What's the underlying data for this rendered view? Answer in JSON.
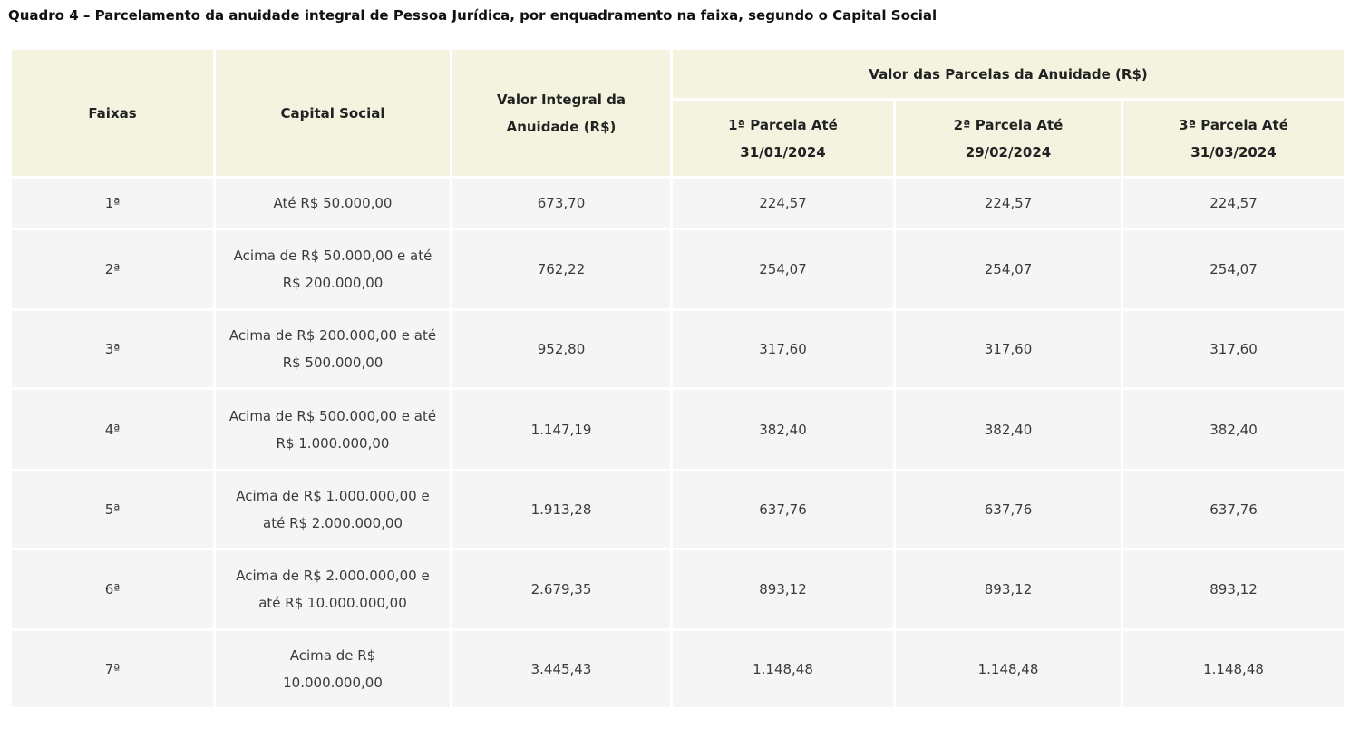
{
  "caption": "Quadro 4 – Parcelamento da anuidade integral de Pessoa Jurídica, por enquadramento na faixa, segundo o Capital Social",
  "headers": {
    "faixas": "Faixas",
    "capital_social": "Capital Social",
    "valor_integral": "Valor Integral da Anuidade (R$)",
    "parcelas_group": "Valor das Parcelas da Anuidade (R$)",
    "parcela_1": "1ª Parcela Até 31/01/2024",
    "parcela_2": "2ª Parcela Até 29/02/2024",
    "parcela_3": "3ª Parcela Até 31/03/2024"
  },
  "rows": [
    {
      "faixa": "1ª",
      "capital": "Até R$ 50.000,00",
      "integral": "673,70",
      "p1": "224,57",
      "p2": "224,57",
      "p3": "224,57"
    },
    {
      "faixa": "2ª",
      "capital": "Acima de R$ 50.000,00 e até R$ 200.000,00",
      "integral": "762,22",
      "p1": "254,07",
      "p2": "254,07",
      "p3": "254,07"
    },
    {
      "faixa": "3ª",
      "capital": "Acima de R$ 200.000,00 e até R$ 500.000,00",
      "integral": "952,80",
      "p1": "317,60",
      "p2": "317,60",
      "p3": "317,60"
    },
    {
      "faixa": "4ª",
      "capital": "Acima de R$ 500.000,00 e até R$ 1.000.000,00",
      "integral": "1.147,19",
      "p1": "382,40",
      "p2": "382,40",
      "p3": "382,40"
    },
    {
      "faixa": "5ª",
      "capital": "Acima de R$ 1.000.000,00 e até R$ 2.000.000,00",
      "integral": "1.913,28",
      "p1": "637,76",
      "p2": "637,76",
      "p3": "637,76"
    },
    {
      "faixa": "6ª",
      "capital": "Acima de R$ 2.000.000,00 e até R$ 10.000.000,00",
      "integral": "2.679,35",
      "p1": "893,12",
      "p2": "893,12",
      "p3": "893,12"
    },
    {
      "faixa": "7ª",
      "capital": "Acima de R$ 10.000.000,00",
      "integral": "3.445,43",
      "p1": "1.148,48",
      "p2": "1.148,48",
      "p3": "1.148,48"
    }
  ],
  "colors": {
    "header_bg": "#f3f3df",
    "cell_bg": "#f5f5f5",
    "text": "#3a3a3a"
  }
}
